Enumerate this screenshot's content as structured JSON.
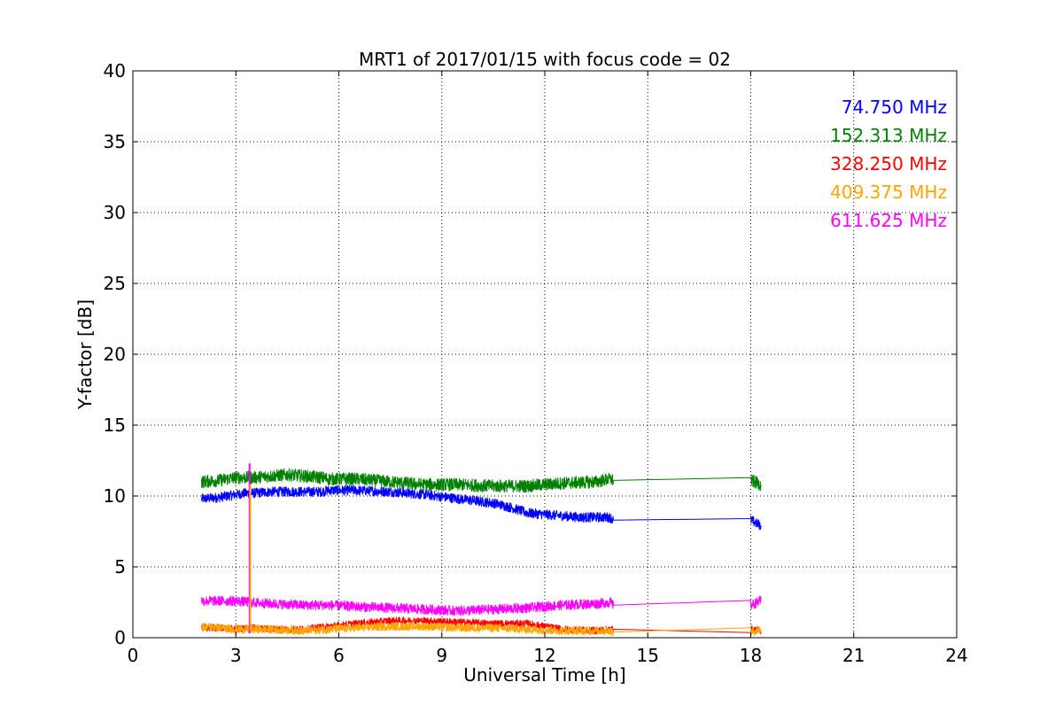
{
  "chart_data": {
    "type": "line",
    "title": "MRT1 of 2017/01/15 with focus code = 02",
    "xlabel": "Universal Time [h]",
    "ylabel": "Y-factor [dB]",
    "xlim": [
      0,
      24
    ],
    "ylim": [
      0,
      40
    ],
    "xticks": [
      0,
      3,
      6,
      9,
      12,
      15,
      18,
      21,
      24
    ],
    "yticks": [
      0,
      5,
      10,
      15,
      20,
      25,
      30,
      35,
      40
    ],
    "grid": true,
    "legend_position": "top-right",
    "series": [
      {
        "name": "74.750 MHz",
        "color": "#0000ff",
        "noise": 0.35,
        "points": [
          [
            2.0,
            9.8
          ],
          [
            2.5,
            9.9
          ],
          [
            3.0,
            10.1
          ],
          [
            3.3,
            10.2
          ],
          [
            3.5,
            10.2
          ],
          [
            4.0,
            10.3
          ],
          [
            4.5,
            10.3
          ],
          [
            5.0,
            10.3
          ],
          [
            5.5,
            10.3
          ],
          [
            5.7,
            10.4
          ],
          [
            6.5,
            10.4
          ],
          [
            7.5,
            10.3
          ],
          [
            8.5,
            10.1
          ],
          [
            9.5,
            9.8
          ],
          [
            10.5,
            9.5
          ],
          [
            11.0,
            9.2
          ],
          [
            11.5,
            8.8
          ],
          [
            12.0,
            8.7
          ],
          [
            13.0,
            8.5
          ],
          [
            13.9,
            8.5
          ],
          [
            14.0,
            8.3
          ],
          [
            18.0,
            8.3
          ],
          [
            18.3,
            7.9
          ]
        ]
      },
      {
        "name": "152.313 MHz",
        "color": "#008000",
        "noise": 0.45,
        "points": [
          [
            2.0,
            11.0
          ],
          [
            2.5,
            11.1
          ],
          [
            3.0,
            11.3
          ],
          [
            3.5,
            11.3
          ],
          [
            4.0,
            11.4
          ],
          [
            4.5,
            11.5
          ],
          [
            5.0,
            11.4
          ],
          [
            5.5,
            11.3
          ],
          [
            5.7,
            11.2
          ],
          [
            6.5,
            11.2
          ],
          [
            7.5,
            11.0
          ],
          [
            8.5,
            10.8
          ],
          [
            9.5,
            10.8
          ],
          [
            10.5,
            10.7
          ],
          [
            11.5,
            10.7
          ],
          [
            12.5,
            10.9
          ],
          [
            13.5,
            11.0
          ],
          [
            13.9,
            11.2
          ],
          [
            14.0,
            11.1
          ],
          [
            18.0,
            11.1
          ],
          [
            18.3,
            10.8
          ]
        ]
      },
      {
        "name": "328.250 MHz",
        "color": "#ff0000",
        "noise": 0.25,
        "points": [
          [
            2.0,
            0.7
          ],
          [
            2.5,
            0.7
          ],
          [
            3.0,
            0.6
          ],
          [
            3.4,
            0.7
          ],
          [
            4.0,
            0.6
          ],
          [
            5.0,
            0.6
          ],
          [
            5.7,
            0.8
          ],
          [
            6.5,
            1.0
          ],
          [
            7.5,
            1.2
          ],
          [
            8.5,
            1.2
          ],
          [
            9.5,
            1.1
          ],
          [
            10.5,
            1.0
          ],
          [
            11.5,
            1.0
          ],
          [
            12.5,
            0.6
          ],
          [
            13.5,
            0.5
          ],
          [
            13.9,
            0.6
          ],
          [
            14.0,
            0.6
          ],
          [
            18.0,
            0.6
          ],
          [
            18.3,
            0.5
          ]
        ]
      },
      {
        "name": "409.375 MHz",
        "color": "#ffa500",
        "noise": 0.3,
        "points": [
          [
            2.0,
            0.8
          ],
          [
            2.5,
            0.7
          ],
          [
            3.0,
            0.6
          ],
          [
            3.4,
            0.6
          ],
          [
            4.0,
            0.6
          ],
          [
            5.0,
            0.5
          ],
          [
            5.7,
            0.6
          ],
          [
            6.5,
            0.7
          ],
          [
            7.5,
            0.8
          ],
          [
            8.5,
            0.8
          ],
          [
            9.5,
            0.7
          ],
          [
            10.5,
            0.7
          ],
          [
            11.5,
            0.6
          ],
          [
            12.5,
            0.5
          ],
          [
            13.5,
            0.5
          ],
          [
            13.9,
            0.5
          ],
          [
            14.0,
            0.4
          ],
          [
            18.0,
            0.4
          ],
          [
            18.3,
            0.6
          ]
        ]
      },
      {
        "name": "611.625 MHz",
        "color": "#ff00ff",
        "noise": 0.35,
        "points": [
          [
            2.0,
            2.6
          ],
          [
            2.5,
            2.6
          ],
          [
            3.0,
            2.6
          ],
          [
            3.4,
            2.5
          ],
          [
            4.0,
            2.4
          ],
          [
            5.0,
            2.3
          ],
          [
            5.7,
            2.3
          ],
          [
            6.5,
            2.2
          ],
          [
            7.5,
            2.1
          ],
          [
            8.5,
            2.0
          ],
          [
            9.5,
            1.9
          ],
          [
            10.5,
            2.0
          ],
          [
            11.5,
            2.1
          ],
          [
            12.5,
            2.3
          ],
          [
            13.5,
            2.4
          ],
          [
            13.9,
            2.5
          ],
          [
            14.0,
            2.3
          ],
          [
            18.0,
            2.3
          ],
          [
            18.3,
            2.6
          ]
        ]
      }
    ],
    "spikes": [
      {
        "x": 3.4,
        "ymin": 0.3,
        "ymax": 12.3,
        "color": "#ff00ff"
      },
      {
        "x": 3.42,
        "ymin": 0.5,
        "ymax": 10.8,
        "color": "#ffa500"
      }
    ]
  }
}
